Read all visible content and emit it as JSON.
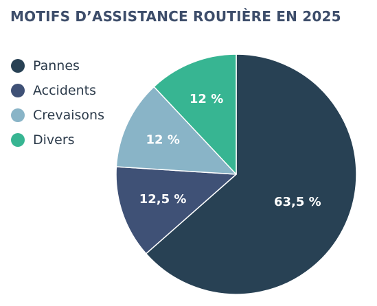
{
  "chart_data": {
    "type": "pie",
    "title": "MOTIFS D’ASSISTANCE ROUTIÈRE EN 2025",
    "legend_position": "left",
    "slices": [
      {
        "name": "Pannes",
        "value": 63.5,
        "label": "63,5 %",
        "color": "#284154"
      },
      {
        "name": "Accidents",
        "value": 12.5,
        "label": "12,5 %",
        "color": "#3f5176"
      },
      {
        "name": "Crevaisons",
        "value": 12,
        "label": "12 %",
        "color": "#89b4c7"
      },
      {
        "name": "Divers",
        "value": 12,
        "label": "12 %",
        "color": "#37b592"
      }
    ]
  }
}
